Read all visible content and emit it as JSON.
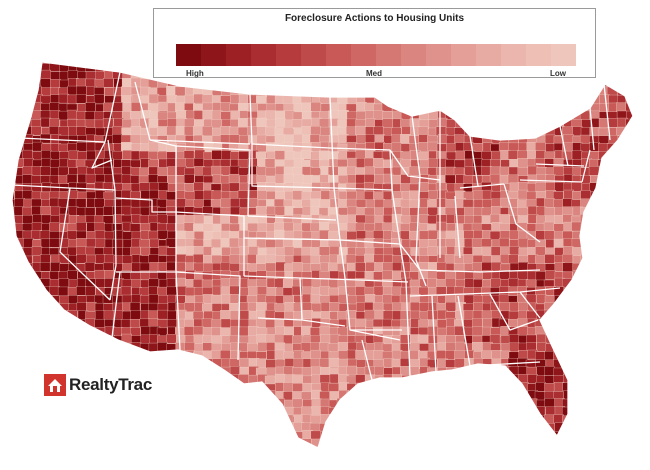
{
  "legend": {
    "title": "Foreclosure Actions to Housing Units",
    "high_label": "High",
    "med_label": "Med",
    "low_label": "Low",
    "ramp_colors": [
      "#7e0b0f",
      "#8e1519",
      "#9d2025",
      "#aa2d31",
      "#b53b3d",
      "#bf4a4a",
      "#c85957",
      "#cf6864",
      "#d57772",
      "#da8580",
      "#df928c",
      "#e39f98",
      "#e7aba3",
      "#eab6ad",
      "#edbfb5",
      "#efc6bb"
    ]
  },
  "colors": {
    "high": "#8a1014",
    "medium": "#c65a57",
    "low": "#eec5b5",
    "state_border": "#ffffff"
  },
  "logo": {
    "brand": "RealtyTrac",
    "mark_color": "#d0342c"
  }
}
